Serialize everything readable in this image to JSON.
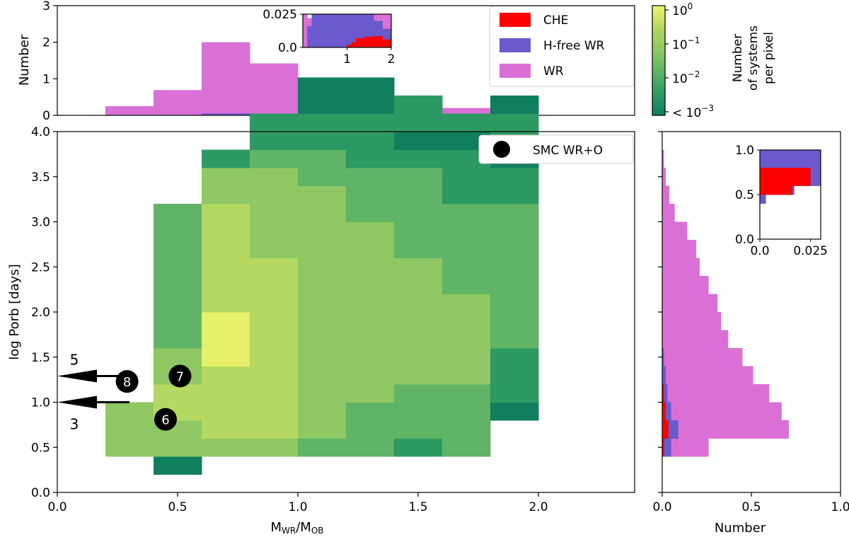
{
  "colors": {
    "che": "#ff0000",
    "hfree": "#6a5acd",
    "wr": "#da70d6",
    "cmap": [
      "#0f7f5e",
      "#2e9a63",
      "#5fb565",
      "#8fc863",
      "#b5d860",
      "#e6f06a"
    ]
  },
  "chart_data": [
    {
      "id": "main",
      "type": "heatmap",
      "xlabel_main": "M",
      "xlabel_sub1": "WR",
      "xlabel_sep": "/M",
      "xlabel_sub2": "OB",
      "ylabel": "log Porb [days]",
      "xlim": [
        0.0,
        2.4
      ],
      "ylim": [
        0.0,
        4.0
      ],
      "xticks": [
        "0.0",
        "0.5",
        "1.0",
        "1.5",
        "2.0"
      ],
      "xtick_values": [
        0.0,
        0.5,
        1.0,
        1.5,
        2.0
      ],
      "yticks": [
        "0.0",
        "0.5",
        "1.0",
        "1.5",
        "2.0",
        "2.5",
        "3.0",
        "3.5",
        "4.0"
      ],
      "ytick_values": [
        0.0,
        0.5,
        1.0,
        1.5,
        2.0,
        2.5,
        3.0,
        3.5,
        4.0
      ],
      "x_bin_edges": [
        0.2,
        0.4,
        0.6,
        0.8,
        1.0,
        1.2,
        1.4,
        1.6,
        1.8,
        2.0
      ],
      "y_bin_width": 0.2,
      "columns": [
        {
          "x0": 0.2,
          "y_start": 0.4,
          "levels": [
            3,
            3,
            3
          ]
        },
        {
          "x0": 0.4,
          "y_start": 0.2,
          "levels": [
            0,
            3,
            3,
            4,
            4,
            3,
            3,
            2,
            2,
            2,
            2,
            2,
            2,
            2,
            2
          ]
        },
        {
          "x0": 0.6,
          "y_start": 0.4,
          "levels": [
            3,
            4,
            4,
            4,
            4,
            5,
            5,
            5,
            4,
            4,
            4,
            4,
            4,
            4,
            3,
            3,
            1
          ]
        },
        {
          "x0": 0.8,
          "y_start": 0.4,
          "levels": [
            3,
            4,
            4,
            4,
            4,
            4,
            4,
            4,
            4,
            4,
            4,
            3,
            3,
            3,
            3,
            3,
            2,
            1,
            1
          ]
        },
        {
          "x0": 1.0,
          "y_start": 0.4,
          "levels": [
            2,
            3,
            3,
            3,
            3,
            3,
            3,
            3,
            3,
            3,
            3,
            3,
            3,
            3,
            3,
            2,
            2,
            1,
            1,
            0,
            0
          ]
        },
        {
          "x0": 1.2,
          "y_start": 0.4,
          "levels": [
            2,
            2,
            2,
            3,
            3,
            3,
            3,
            3,
            3,
            3,
            3,
            3,
            3,
            2,
            2,
            2,
            1,
            1,
            1,
            0,
            0
          ]
        },
        {
          "x0": 1.4,
          "y_start": 0.4,
          "levels": [
            1,
            2,
            2,
            2,
            3,
            3,
            3,
            3,
            3,
            3,
            3,
            2,
            2,
            2,
            2,
            2,
            1,
            0,
            1,
            1
          ]
        },
        {
          "x0": 1.6,
          "y_start": 0.4,
          "levels": [
            2,
            2,
            2,
            2,
            3,
            3,
            3,
            3,
            3,
            2,
            2,
            2,
            2,
            2,
            1,
            1,
            1,
            0,
            1
          ]
        },
        {
          "x0": 1.8,
          "y_start": 0.8,
          "levels": [
            0,
            1,
            1,
            1,
            2,
            2,
            2,
            2,
            2,
            2,
            2,
            2,
            1,
            1,
            0,
            1,
            1,
            0
          ]
        }
      ],
      "observed": [
        {
          "label": "6",
          "x": 0.45,
          "y": 0.81
        },
        {
          "label": "7",
          "x": 0.51,
          "y": 1.29
        },
        {
          "label": "8",
          "x": 0.29,
          "y": 1.23
        }
      ],
      "arrows": [
        {
          "label": "5",
          "x_from": 0.28,
          "x_to": 0.0,
          "y": 1.29
        },
        {
          "label": "3",
          "x_from": 0.3,
          "x_to": 0.0,
          "y": 1.0
        }
      ],
      "legend": "SMC WR+O"
    },
    {
      "id": "top",
      "type": "bar",
      "ylabel": "Number",
      "ylim": [
        0,
        3
      ],
      "yticks": [
        "0",
        "1",
        "2",
        "3"
      ],
      "ytick_values": [
        0,
        1,
        2,
        3
      ],
      "bin_edges": [
        0.2,
        0.4,
        0.6,
        0.8,
        1.0,
        1.2,
        1.4,
        1.6,
        1.8,
        2.0
      ],
      "series": [
        {
          "name": "WR",
          "values": [
            0.25,
            0.69,
            2.0,
            1.42,
            0.88,
            0.61,
            0.37,
            0.2,
            0.1
          ]
        },
        {
          "name": "H-free WR",
          "values": [
            0,
            0,
            0.05,
            0.05,
            0.05,
            0.05,
            0.02,
            0,
            0
          ]
        },
        {
          "name": "CHE",
          "values": [
            0,
            0,
            0,
            0,
            0,
            0,
            0,
            0,
            0
          ]
        }
      ],
      "legend": [
        "CHE",
        "H-free WR",
        "WR"
      ],
      "inset": {
        "xticks": [
          "1",
          "2"
        ],
        "xtick_values": [
          1,
          2
        ],
        "yticks": [
          "0.0",
          "0.025"
        ],
        "ytick_values": [
          0.0,
          0.025
        ],
        "xlim": [
          0.0,
          2.0
        ],
        "ylim": [
          0.0,
          0.025
        ],
        "bin_edges": [
          0.0,
          0.1,
          0.2,
          0.4,
          0.6,
          0.8,
          1.0,
          1.1,
          1.2,
          1.4,
          1.6,
          1.8,
          2.0
        ],
        "series": [
          {
            "name": "WR",
            "values": [
              0.025,
              0.022,
              0.025,
              0.025,
              0.025,
              0.025,
              0.025,
              0.025,
              0.025,
              0.025,
              0.025,
              0.025
            ]
          },
          {
            "name": "H-free WR",
            "values": [
              0.0,
              0.016,
              0.025,
              0.025,
              0.025,
              0.025,
              0.025,
              0.025,
              0.025,
              0.025,
              0.02,
              0.014
            ]
          },
          {
            "name": "CHE",
            "values": [
              0,
              0,
              0,
              0,
              0,
              0,
              0.002,
              0.004,
              0.007,
              0.008,
              0.0085,
              0.006
            ]
          }
        ]
      }
    },
    {
      "id": "right",
      "type": "bar",
      "orientation": "horizontal",
      "xlabel": "Number",
      "xlim": [
        0.0,
        1.0
      ],
      "xticks": [
        "0.0",
        "0.5",
        "1.0"
      ],
      "xtick_values": [
        0.0,
        0.5,
        1.0
      ],
      "bin_edges_y": [
        0.4,
        0.6,
        0.8,
        1.0,
        1.2,
        1.4,
        1.6,
        1.8,
        2.0,
        2.2,
        2.4,
        2.6,
        2.8,
        3.0,
        3.2,
        3.4,
        3.6,
        3.8
      ],
      "series": [
        {
          "name": "WR",
          "values": [
            0.26,
            0.71,
            0.67,
            0.6,
            0.51,
            0.45,
            0.37,
            0.33,
            0.31,
            0.26,
            0.21,
            0.19,
            0.14,
            0.07,
            0.04,
            0.02,
            0.01
          ]
        },
        {
          "name": "H-free WR",
          "values": [
            0.05,
            0.09,
            0.05,
            0.03,
            0.02,
            0.01,
            0,
            0,
            0,
            0,
            0,
            0,
            0,
            0,
            0,
            0,
            0
          ]
        },
        {
          "name": "CHE",
          "values": [
            0.01,
            0.035,
            0.02,
            0.01,
            0,
            0,
            0,
            0,
            0,
            0,
            0,
            0,
            0,
            0,
            0,
            0,
            0
          ]
        }
      ],
      "inset": {
        "xticks": [
          "0.0",
          "0.025"
        ],
        "xtick_values": [
          0.0,
          0.025
        ],
        "yticks": [
          "0.0",
          "0.5",
          "1.0"
        ],
        "ytick_values": [
          0.0,
          0.5,
          1.0
        ],
        "xlim": [
          0.0,
          0.03
        ],
        "ylim": [
          0.0,
          1.0
        ],
        "bin_edges_y": [
          0.4,
          0.5,
          0.6,
          0.7,
          0.8,
          0.9,
          1.0
        ],
        "series": [
          {
            "name": "H-free WR",
            "values": [
              0.003,
              0.017,
              0.03,
              0.03,
              0.03,
              0.03
            ]
          },
          {
            "name": "CHE",
            "values": [
              0,
              0.016,
              0.025,
              0.025,
              0,
              0
            ]
          }
        ]
      }
    },
    {
      "id": "colorbar",
      "type": "colorbar",
      "label_lines": [
        "Number",
        "of systems",
        "per pixel"
      ],
      "tick_base": "10",
      "ticks": [
        {
          "prefix": "",
          "exp": "0",
          "level": 1.0
        },
        {
          "prefix": "",
          "exp": "−1",
          "level": 0.667
        },
        {
          "prefix": "",
          "exp": "−2",
          "level": 0.333
        },
        {
          "prefix": "< ",
          "exp": "−3",
          "level": 0.0
        }
      ]
    }
  ]
}
